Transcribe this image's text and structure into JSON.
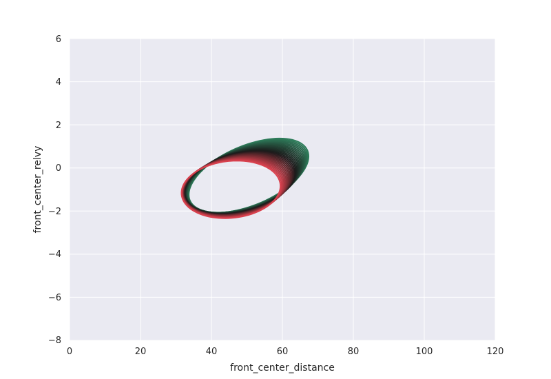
{
  "chart_data": {
    "type": "line",
    "title": "",
    "xlabel": "front_center_distance",
    "ylabel": "front_center_relvy",
    "xlim": [
      0,
      120
    ],
    "ylim": [
      -8,
      6
    ],
    "xticks": [
      "0",
      "20",
      "40",
      "60",
      "80",
      "100",
      "120"
    ],
    "yticks": [
      "6",
      "4",
      "2",
      "0",
      "−2",
      "−4",
      "−6",
      "−8"
    ],
    "grid": true,
    "legend": "none",
    "colors": {
      "background": "#eaeaf2",
      "grid": "#ffffff",
      "start_color": "#2e7d5b",
      "mid_color": "#1a1a1a",
      "end_color": "#d9414e"
    },
    "trajectory": {
      "description_ref": "series of elliptical loops drifting from green to dark to red",
      "loops": 28,
      "start_center": [
        50.5,
        -0.35
      ],
      "end_center": [
        45.5,
        -1.0
      ],
      "start_radius_x": 18,
      "end_radius_x": 14,
      "start_radius_y": 1.38,
      "end_radius_y": 1.32,
      "start_tilt_deg": -23,
      "end_tilt_deg": -6
    }
  }
}
